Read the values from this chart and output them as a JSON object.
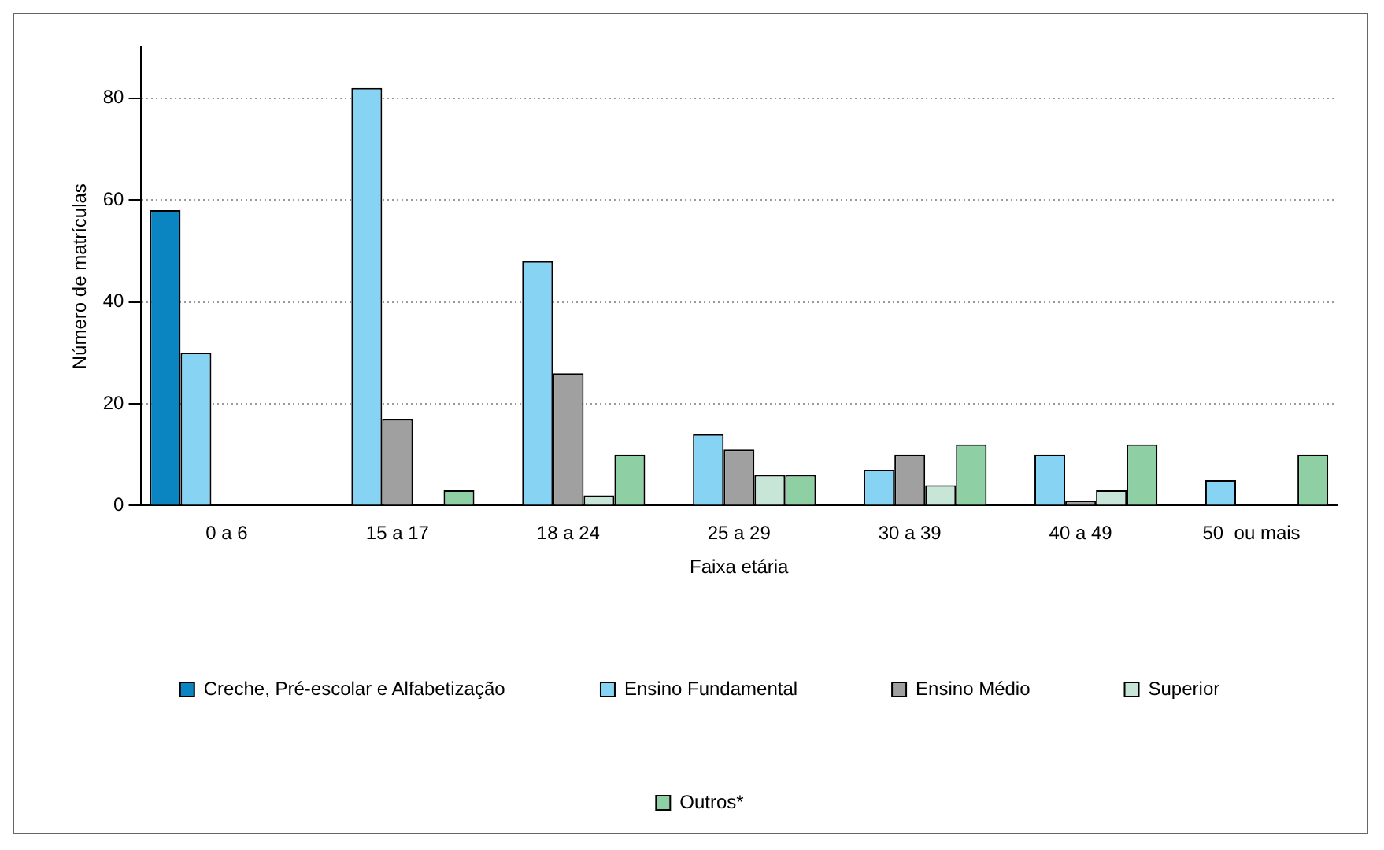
{
  "chart_data": {
    "type": "bar",
    "xlabel": "Faixa etária",
    "ylabel": "Número de matrículas",
    "categories": [
      "0 a 6",
      "15 a 17",
      "18 a 24",
      "25 a 29",
      "30 a 39",
      "40 a 49",
      "50  ou mais"
    ],
    "series": [
      {
        "name": "Creche, Pré-escolar e Alfabetização",
        "color": "#0a85c1",
        "values": [
          58,
          null,
          null,
          null,
          null,
          null,
          null
        ]
      },
      {
        "name": "Ensino Fundamental",
        "color": "#87d3f4",
        "values": [
          30,
          82,
          48,
          14,
          7,
          10,
          5
        ]
      },
      {
        "name": "Ensino Médio",
        "color": "#a0a0a0",
        "values": [
          null,
          17,
          26,
          11,
          10,
          1,
          0
        ]
      },
      {
        "name": "Superior",
        "color": "#c8e6d8",
        "values": [
          null,
          null,
          2,
          6,
          4,
          3,
          null
        ]
      },
      {
        "name": "Outros*",
        "color": "#8fcfa4",
        "values": [
          null,
          3,
          10,
          6,
          12,
          12,
          10
        ]
      }
    ],
    "ylim": [
      0,
      90
    ],
    "yticks": [
      0,
      20,
      40,
      60,
      80
    ],
    "grid": "y",
    "legend": "bottom"
  }
}
